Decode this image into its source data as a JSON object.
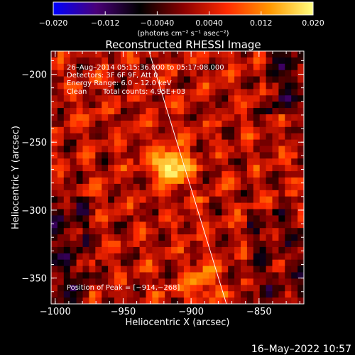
{
  "chart_data": {
    "type": "heatmap",
    "title": "Reconstructed RHESSI Image",
    "xlabel": "Heliocentric X (arcsec)",
    "ylabel": "Heliocentric Y (arcsec)",
    "xlim": [
      -1003,
      -817
    ],
    "ylim": [
      -369,
      -183
    ],
    "x_ticks": [
      -1000,
      -950,
      -900,
      -850
    ],
    "x_tick_labels": [
      "−1000",
      "−950",
      "−900",
      "−850"
    ],
    "y_ticks": [
      -200,
      -250,
      -300,
      -350
    ],
    "y_tick_labels": [
      "−200",
      "−250",
      "−300",
      "−350"
    ],
    "colorbar": {
      "range": [
        -0.02,
        0.02
      ],
      "ticks": [
        -0.02,
        -0.012,
        -0.004,
        0.004,
        0.012,
        0.02
      ],
      "tick_labels": [
        "−0.020",
        "−0.012",
        "−0.0040",
        "0.0040",
        "0.012",
        "0.020"
      ],
      "unit_label": "(photons cm⁻² s⁻¹ asec⁻²)",
      "colors": [
        "#0000ff",
        "#4a0078",
        "#000000",
        "#8a0000",
        "#ff2a00",
        "#ff9800",
        "#ffff80"
      ]
    },
    "annotations": {
      "time": "26–Aug–2014 05:15:36.000 to 05:17:08.000",
      "detectors": "Detectors: 3F 6F 9F, Att 0",
      "energy": "Energy Range: 6.0 – 12.0 keV",
      "method": "Clean",
      "counts": "Total counts: 4.95E+03",
      "peak": "Position of Peak = [−914,−268]"
    },
    "peak": {
      "x": -914,
      "y": -268
    },
    "sources": [
      {
        "x": -914,
        "y": -268,
        "value": 0.02
      },
      {
        "x": -893,
        "y": -353,
        "value": 0.01
      }
    ],
    "limb": [
      [
        -931,
        -183
      ],
      [
        -874,
        -369
      ]
    ],
    "timestamp": "16–May–2022 10:57"
  }
}
